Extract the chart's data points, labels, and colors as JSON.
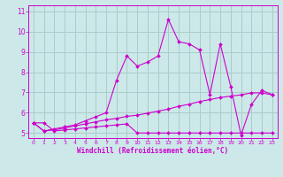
{
  "xlabel": "Windchill (Refroidissement éolien,°C)",
  "background_color": "#cce8e8",
  "grid_color": "#aacccc",
  "line_color": "#cc00cc",
  "x": [
    0,
    1,
    2,
    3,
    4,
    5,
    6,
    7,
    8,
    9,
    10,
    11,
    12,
    13,
    14,
    15,
    16,
    17,
    18,
    19,
    20,
    21,
    22,
    23
  ],
  "line1": [
    5.5,
    5.5,
    5.1,
    5.15,
    5.2,
    5.25,
    5.3,
    5.35,
    5.4,
    5.45,
    5.0,
    5.0,
    5.0,
    5.0,
    5.0,
    5.0,
    5.0,
    5.0,
    5.0,
    5.0,
    5.0,
    5.0,
    5.0,
    5.0
  ],
  "line2": [
    5.5,
    5.1,
    5.15,
    5.25,
    5.35,
    5.45,
    5.55,
    5.65,
    5.72,
    5.82,
    5.88,
    5.98,
    6.08,
    6.18,
    6.32,
    6.42,
    6.55,
    6.65,
    6.75,
    6.82,
    6.88,
    6.98,
    6.98,
    6.88
  ],
  "line3": [
    5.5,
    5.1,
    5.2,
    5.3,
    5.4,
    5.6,
    5.8,
    6.0,
    7.6,
    8.8,
    8.3,
    8.5,
    8.8,
    10.6,
    9.5,
    9.4,
    9.1,
    6.9,
    9.4,
    7.3,
    4.9,
    6.4,
    7.1,
    6.9
  ],
  "ylim": [
    4.75,
    11.3
  ],
  "yticks": [
    5,
    6,
    7,
    8,
    9,
    10,
    11
  ],
  "xlim": [
    -0.5,
    23.5
  ],
  "xticks": [
    0,
    1,
    2,
    3,
    4,
    5,
    6,
    7,
    8,
    9,
    10,
    11,
    12,
    13,
    14,
    15,
    16,
    17,
    18,
    19,
    20,
    21,
    22,
    23
  ]
}
